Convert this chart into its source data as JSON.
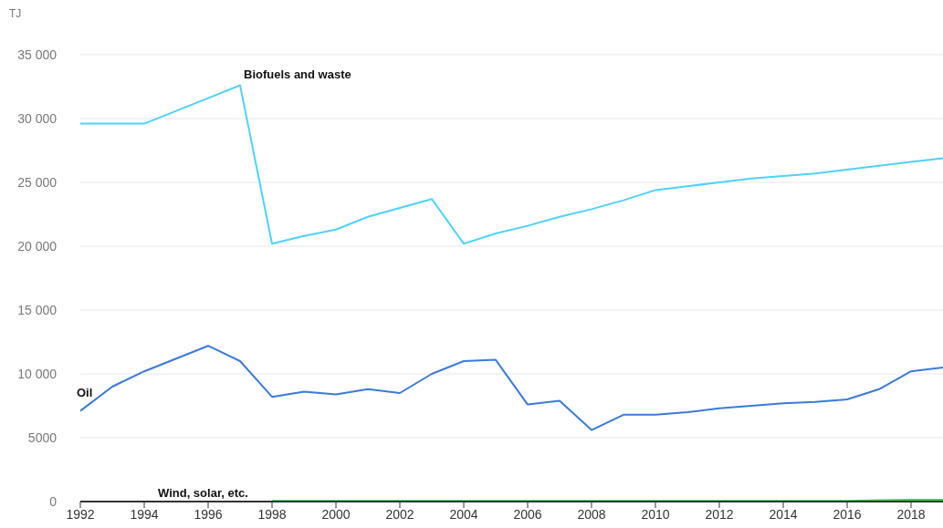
{
  "chart_data": {
    "type": "line",
    "ylabel": "TJ",
    "x": [
      1992,
      1993,
      1994,
      1995,
      1996,
      1997,
      1998,
      1999,
      2000,
      2001,
      2002,
      2003,
      2004,
      2005,
      2006,
      2007,
      2008,
      2009,
      2010,
      2011,
      2012,
      2013,
      2014,
      2015,
      2016,
      2017,
      2018,
      2019
    ],
    "series": [
      {
        "name": "Biofuels and waste",
        "color": "#4dd2ff",
        "values": [
          29600,
          29600,
          29600,
          30600,
          31600,
          32600,
          20200,
          20800,
          21300,
          22300,
          23000,
          23700,
          20200,
          21000,
          21600,
          22300,
          22900,
          23600,
          24400,
          24700,
          25000,
          25300,
          25500,
          25700,
          26000,
          26300,
          26600,
          26900
        ]
      },
      {
        "name": "Oil",
        "color": "#3a7bd5",
        "values": [
          7100,
          9000,
          10200,
          11200,
          12200,
          11000,
          8200,
          8600,
          8400,
          8800,
          8500,
          10000,
          11000,
          11100,
          7600,
          7900,
          5600,
          6800,
          6800,
          7000,
          7300,
          7500,
          7700,
          7800,
          8000,
          8800,
          10200,
          10500
        ]
      },
      {
        "name": "Wind, solar, etc.",
        "color": "#3ccf4e",
        "values": [
          null,
          null,
          null,
          null,
          null,
          null,
          50,
          50,
          50,
          50,
          50,
          50,
          50,
          50,
          50,
          50,
          50,
          50,
          50,
          50,
          50,
          50,
          50,
          50,
          50,
          100,
          150,
          150
        ]
      }
    ],
    "xlim": [
      1992,
      2019
    ],
    "xticks": [
      1992,
      1994,
      1996,
      1998,
      2000,
      2002,
      2004,
      2006,
      2008,
      2010,
      2012,
      2014,
      2016,
      2018
    ],
    "ylim": [
      0,
      35000
    ],
    "yticks": [
      0,
      5000,
      {
        "value": 10000,
        "label": "10 000"
      },
      {
        "value": 15000,
        "label": "15 000"
      },
      {
        "value": 20000,
        "label": "20 000"
      },
      {
        "value": 25000,
        "label": "25 000"
      },
      {
        "value": 30000,
        "label": "30 000"
      },
      {
        "value": 35000,
        "label": "35 000"
      }
    ],
    "grid": "y",
    "legend": false,
    "marker": "none",
    "line_style": "solid"
  }
}
